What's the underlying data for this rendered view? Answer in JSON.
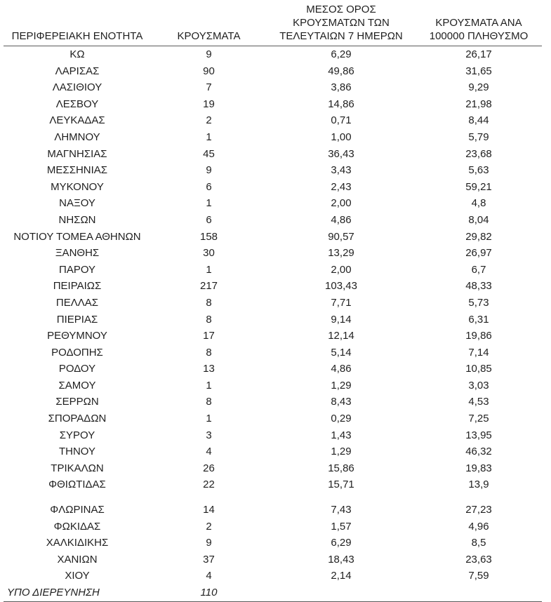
{
  "table": {
    "headers": [
      {
        "id": "region",
        "lines": [
          "ΠΕΡΙΦΕΡΕΙΑΚΗ ΕΝΟΤΗΤΑ"
        ]
      },
      {
        "id": "cases",
        "lines": [
          "ΚΡΟΥΣΜΑΤΑ"
        ]
      },
      {
        "id": "avg7",
        "lines": [
          "ΜΕΣΟΣ ΟΡΟΣ",
          "ΚΡΟΥΣΜΑΤΩΝ ΤΩΝ",
          "ΤΕΛΕΥΤΑΙΩΝ 7 ΗΜΕΡΩΝ"
        ]
      },
      {
        "id": "per100k",
        "lines": [
          "ΚΡΟΥΣΜΑΤΑ ΑΝΑ",
          "100000 ΠΛΗΘΥΣΜΟ"
        ]
      }
    ],
    "rows": [
      {
        "region": "ΚΩ",
        "cases": "9",
        "avg_7day": "6,29",
        "per_100k": "26,17"
      },
      {
        "region": "ΛΑΡΙΣΑΣ",
        "cases": "90",
        "avg_7day": "49,86",
        "per_100k": "31,65"
      },
      {
        "region": "ΛΑΣΙΘΙΟΥ",
        "cases": "7",
        "avg_7day": "3,86",
        "per_100k": "9,29"
      },
      {
        "region": "ΛΕΣΒΟΥ",
        "cases": "19",
        "avg_7day": "14,86",
        "per_100k": "21,98"
      },
      {
        "region": "ΛΕΥΚΑΔΑΣ",
        "cases": "2",
        "avg_7day": "0,71",
        "per_100k": "8,44"
      },
      {
        "region": "ΛΗΜΝΟΥ",
        "cases": "1",
        "avg_7day": "1,00",
        "per_100k": "5,79"
      },
      {
        "region": "ΜΑΓΝΗΣΙΑΣ",
        "cases": "45",
        "avg_7day": "36,43",
        "per_100k": "23,68"
      },
      {
        "region": "ΜΕΣΣΗΝΙΑΣ",
        "cases": "9",
        "avg_7day": "3,43",
        "per_100k": "5,63"
      },
      {
        "region": "ΜΥΚΟΝΟΥ",
        "cases": "6",
        "avg_7day": "2,43",
        "per_100k": "59,21"
      },
      {
        "region": "ΝΑΞΟΥ",
        "cases": "1",
        "avg_7day": "2,00",
        "per_100k": "4,8"
      },
      {
        "region": "ΝΗΣΩΝ",
        "cases": "6",
        "avg_7day": "4,86",
        "per_100k": "8,04"
      },
      {
        "region": "ΝΟΤΙΟΥ ΤΟΜΕΑ ΑΘΗΝΩΝ",
        "cases": "158",
        "avg_7day": "90,57",
        "per_100k": "29,82"
      },
      {
        "region": "ΞΑΝΘΗΣ",
        "cases": "30",
        "avg_7day": "13,29",
        "per_100k": "26,97"
      },
      {
        "region": "ΠΑΡΟΥ",
        "cases": "1",
        "avg_7day": "2,00",
        "per_100k": "6,7"
      },
      {
        "region": "ΠΕΙΡΑΙΩΣ",
        "cases": "217",
        "avg_7day": "103,43",
        "per_100k": "48,33"
      },
      {
        "region": "ΠΕΛΛΑΣ",
        "cases": "8",
        "avg_7day": "7,71",
        "per_100k": "5,73"
      },
      {
        "region": "ΠΙΕΡΙΑΣ",
        "cases": "8",
        "avg_7day": "9,14",
        "per_100k": "6,31"
      },
      {
        "region": "ΡΕΘΥΜΝΟΥ",
        "cases": "17",
        "avg_7day": "12,14",
        "per_100k": "19,86"
      },
      {
        "region": "ΡΟΔΟΠΗΣ",
        "cases": "8",
        "avg_7day": "5,14",
        "per_100k": "7,14"
      },
      {
        "region": "ΡΟΔΟΥ",
        "cases": "13",
        "avg_7day": "4,86",
        "per_100k": "10,85"
      },
      {
        "region": "ΣΑΜΟΥ",
        "cases": "1",
        "avg_7day": "1,29",
        "per_100k": "3,03"
      },
      {
        "region": "ΣΕΡΡΩΝ",
        "cases": "8",
        "avg_7day": "8,43",
        "per_100k": "4,53"
      },
      {
        "region": "ΣΠΟΡΑΔΩΝ",
        "cases": "1",
        "avg_7day": "0,29",
        "per_100k": "7,25"
      },
      {
        "region": "ΣΥΡΟΥ",
        "cases": "3",
        "avg_7day": "1,43",
        "per_100k": "13,95"
      },
      {
        "region": "ΤΗΝΟΥ",
        "cases": "4",
        "avg_7day": "1,29",
        "per_100k": "46,32"
      },
      {
        "region": "ΤΡΙΚΑΛΩΝ",
        "cases": "26",
        "avg_7day": "15,86",
        "per_100k": "19,83"
      },
      {
        "region": "ΦΘΙΩΤΙΔΑΣ",
        "cases": "22",
        "avg_7day": "15,71",
        "per_100k": "13,9"
      },
      {
        "region": "ΦΛΩΡΙΝΑΣ",
        "cases": "14",
        "avg_7day": "7,43",
        "per_100k": "27,23",
        "spacer_before": true
      },
      {
        "region": "ΦΩΚΙΔΑΣ",
        "cases": "2",
        "avg_7day": "1,57",
        "per_100k": "4,96"
      },
      {
        "region": "ΧΑΛΚΙΔΙΚΗΣ",
        "cases": "9",
        "avg_7day": "6,29",
        "per_100k": "8,5"
      },
      {
        "region": "ΧΑΝΙΩΝ",
        "cases": "37",
        "avg_7day": "18,43",
        "per_100k": "23,63"
      },
      {
        "region": "ΧΙΟΥ",
        "cases": "4",
        "avg_7day": "2,14",
        "per_100k": "7,59"
      },
      {
        "region": "ΥΠΟ ΔΙΕΡΕΥΝΗΣΗ",
        "cases": "110",
        "avg_7day": "",
        "per_100k": "",
        "italic": true,
        "align_left": true
      }
    ]
  }
}
